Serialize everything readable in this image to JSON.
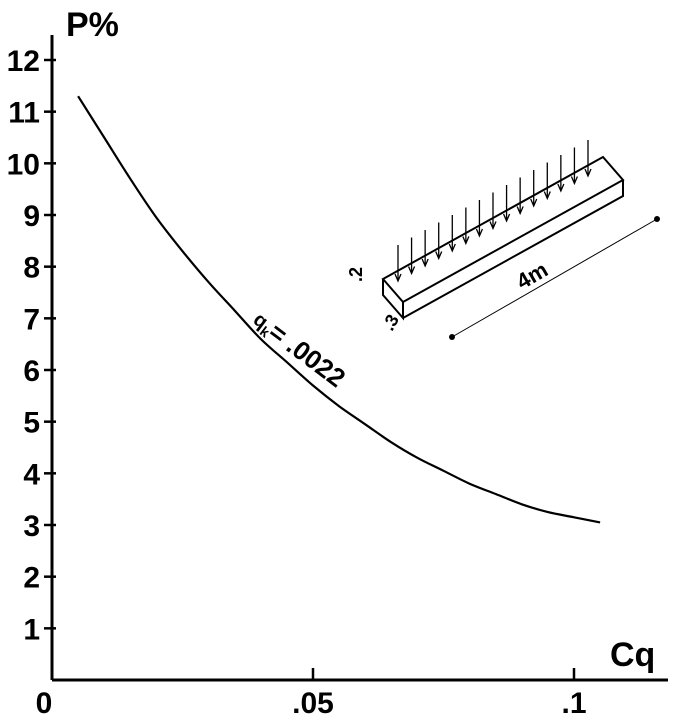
{
  "chart_data": {
    "type": "line",
    "ylabel": "P%",
    "xlabel": "Cq",
    "xlim": [
      0,
      0.12
    ],
    "ylim": [
      0,
      12.5
    ],
    "x_ticks": [
      0,
      0.05,
      0.1
    ],
    "x_tick_labels": [
      "0",
      ".05",
      ".1"
    ],
    "y_ticks": [
      1,
      2,
      3,
      4,
      5,
      6,
      7,
      8,
      9,
      10,
      11,
      12
    ],
    "y_tick_labels": [
      "1",
      "2",
      "3",
      "4",
      "5",
      "6",
      "7",
      "8",
      "9",
      "10",
      "11",
      "12"
    ],
    "grid": false,
    "series": [
      {
        "name": "",
        "x": [
          0.005,
          0.01,
          0.015,
          0.02,
          0.025,
          0.03,
          0.035,
          0.04,
          0.045,
          0.05,
          0.055,
          0.06,
          0.065,
          0.07,
          0.075,
          0.08,
          0.085,
          0.09,
          0.095,
          0.1,
          0.105
        ],
        "y": [
          11.3,
          10.5,
          9.7,
          8.95,
          8.3,
          7.7,
          7.15,
          6.6,
          6.15,
          5.7,
          5.3,
          4.95,
          4.6,
          4.3,
          4.05,
          3.8,
          3.6,
          3.4,
          3.25,
          3.15,
          3.05
        ]
      }
    ],
    "annotations": {
      "curve_label": "q",
      "curve_label_sub": "k",
      "curve_label_value": "= .0022"
    }
  },
  "inset": {
    "length_label": "4m",
    "height_label": ".2",
    "width_label": ".3"
  }
}
